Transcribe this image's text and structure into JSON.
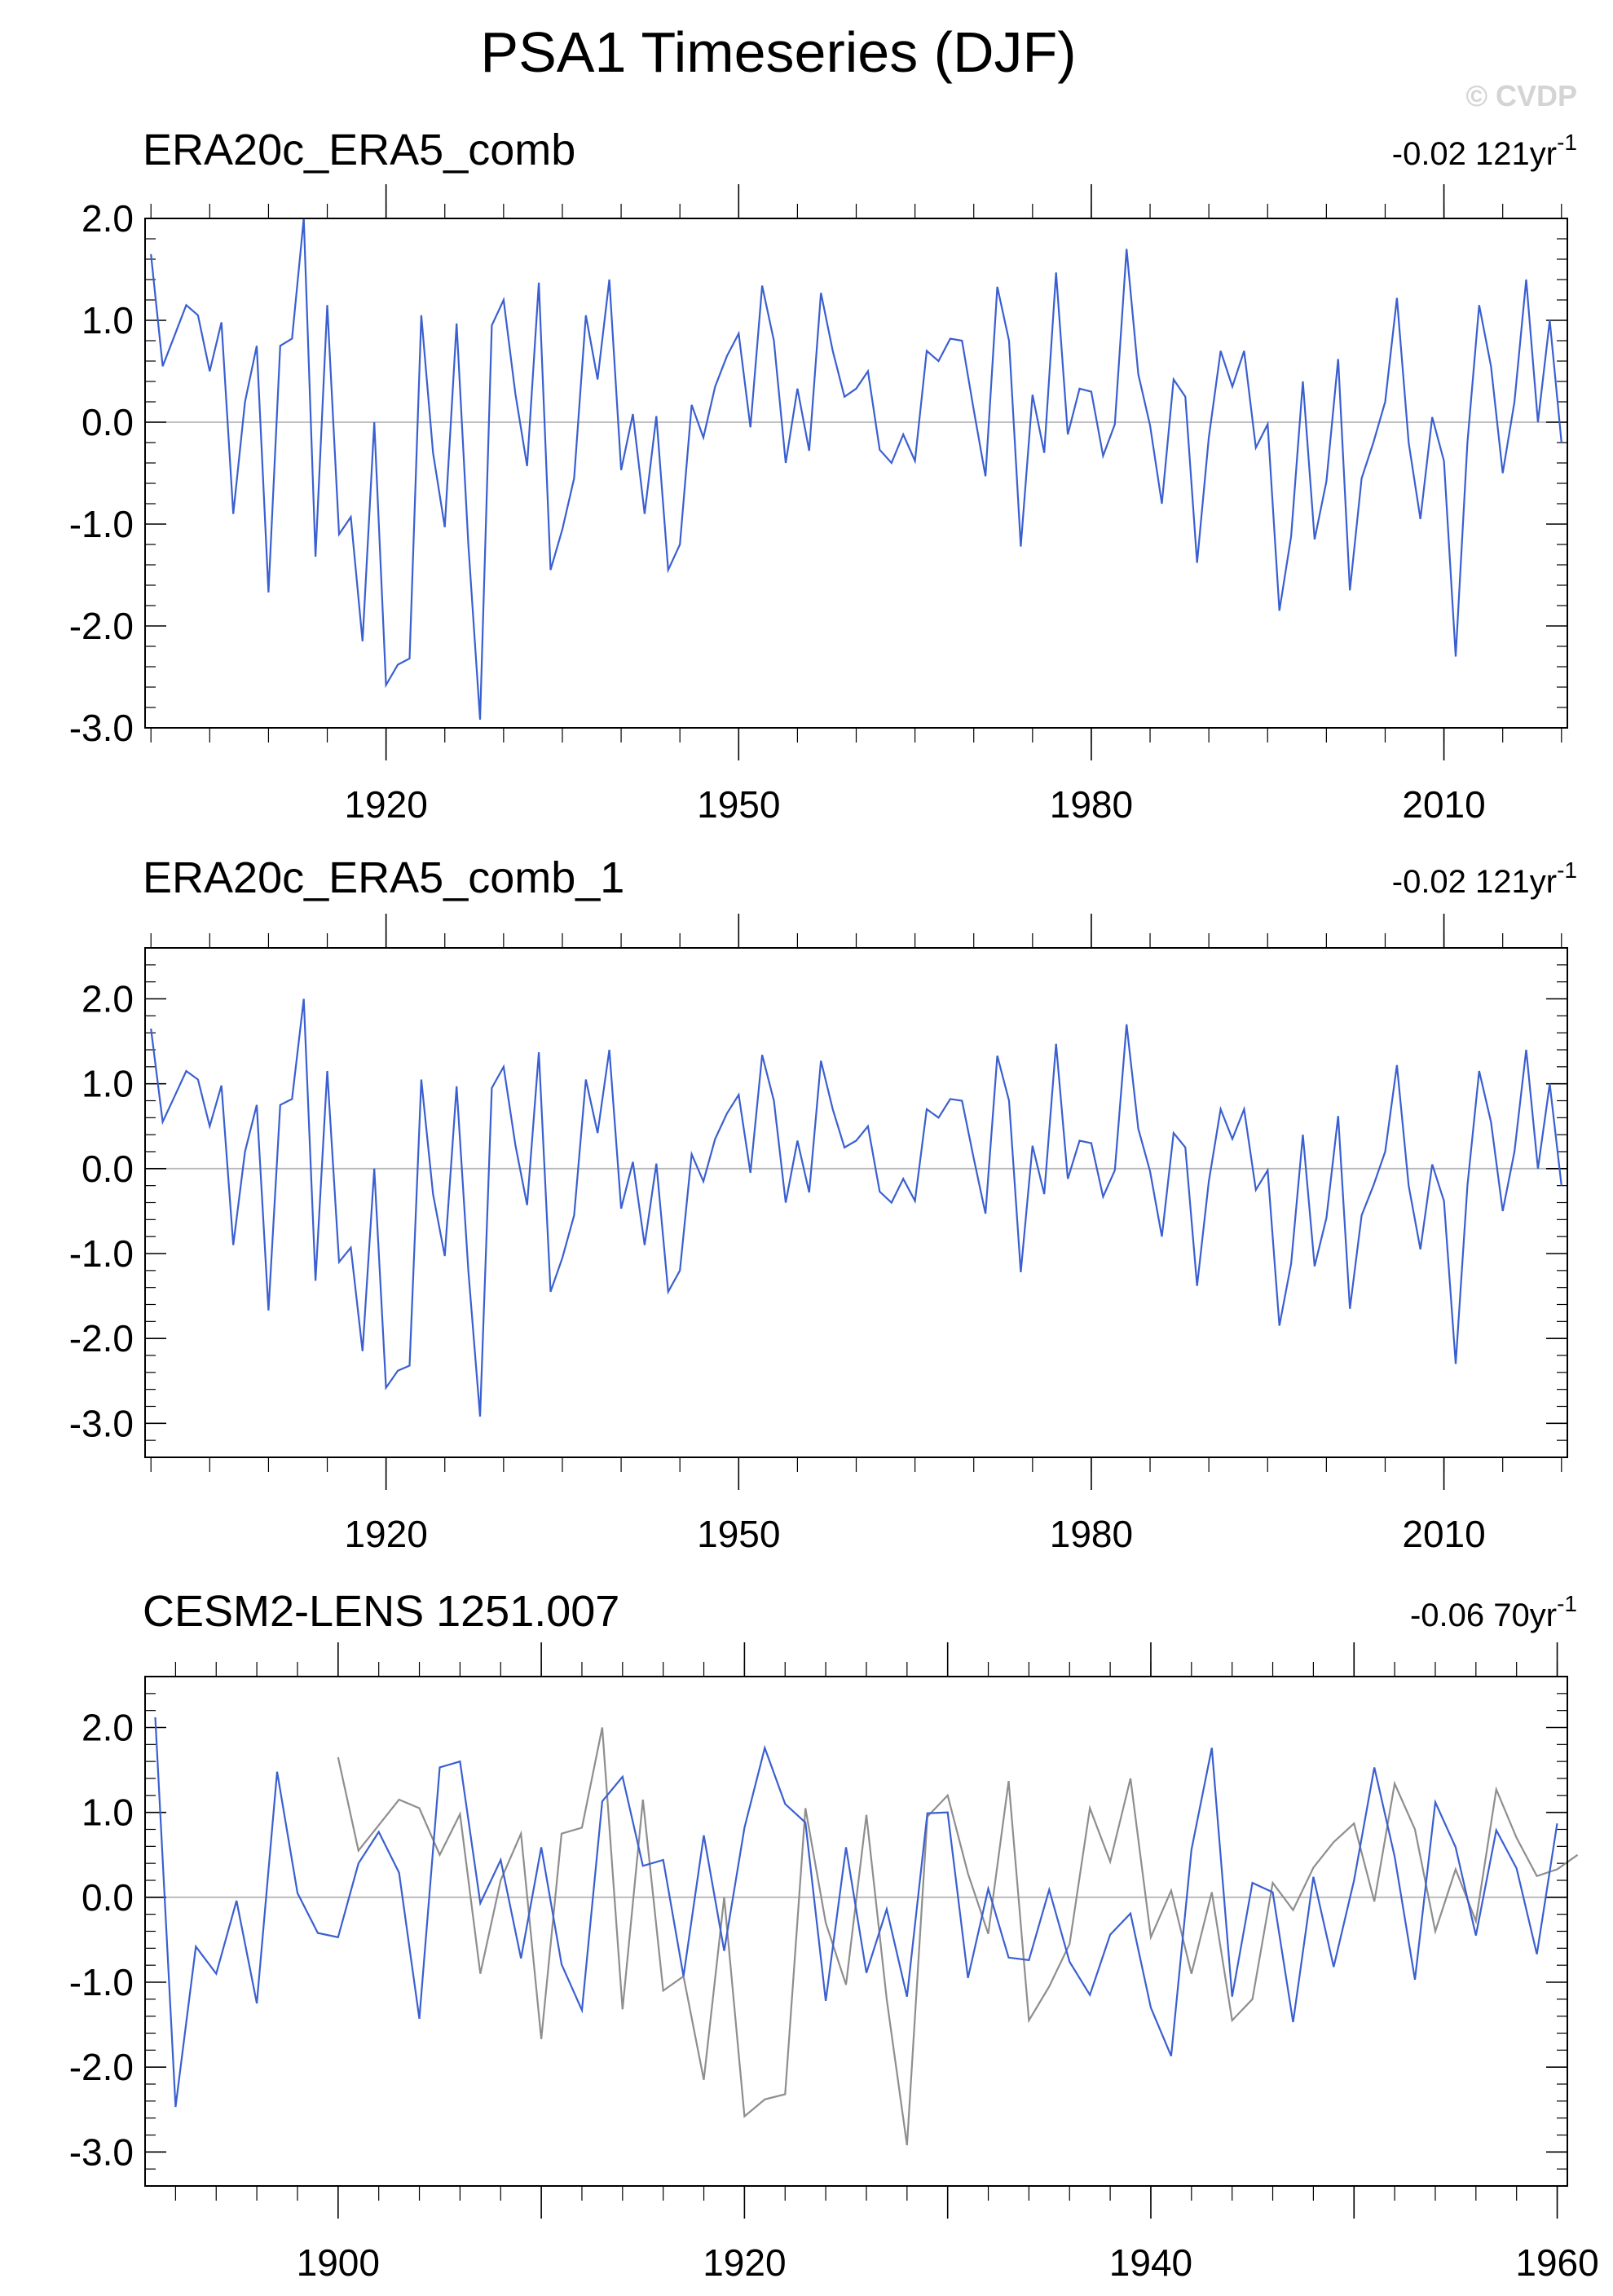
{
  "title": "PSA1 Timeseries (DJF)",
  "watermark": "© CVDP",
  "colors": {
    "primary": "#3a5fd0",
    "secondary": "#8e8e8e",
    "zero_line": "#b8b8b8",
    "frame": "#000000"
  },
  "panels": [
    {
      "title": "ERA20c_ERA5_comb",
      "trend_value": "-0.02 121yr",
      "trend_exponent": "-1"
    },
    {
      "title": "ERA20c_ERA5_comb_1",
      "trend_value": "-0.02 121yr",
      "trend_exponent": "-1"
    },
    {
      "title": "CESM2-LENS 1251.007",
      "trend_value": "-0.06 70yr",
      "trend_exponent": "-1"
    }
  ],
  "chart_data": [
    {
      "type": "line",
      "title": "ERA20c_ERA5_comb",
      "x_start": 1900,
      "x_step": 1,
      "xlim": [
        1899.5,
        2020.5
      ],
      "ylim": [
        -3.0,
        2.0
      ],
      "xticks": [
        1920,
        1950,
        1980,
        2010
      ],
      "yticks": [
        -3.0,
        -2.0,
        -1.0,
        0.0,
        1.0,
        2.0
      ],
      "ytick_labels": [
        "-3.0",
        "-2.0",
        "-1.0",
        "0.0",
        "1.0",
        "2.0"
      ],
      "series": [
        {
          "color": "#3a5fd0",
          "values": [
            1.65,
            0.55,
            0.85,
            1.15,
            1.05,
            0.5,
            0.98,
            -0.9,
            0.2,
            0.75,
            -1.67,
            0.75,
            0.82,
            2.0,
            -1.32,
            1.15,
            -1.1,
            -0.93,
            -2.15,
            0.0,
            -2.58,
            -2.38,
            -2.32,
            1.05,
            -0.3,
            -1.03,
            0.97,
            -1.2,
            -2.92,
            0.95,
            1.2,
            0.28,
            -0.43,
            1.37,
            -1.45,
            -1.05,
            -0.55,
            1.05,
            0.42,
            1.4,
            -0.47,
            0.08,
            -0.9,
            0.06,
            -1.45,
            -1.2,
            0.17,
            -0.15,
            0.35,
            0.65,
            0.87,
            -0.05,
            1.34,
            0.8,
            -0.4,
            0.33,
            -0.28,
            1.27,
            0.7,
            0.25,
            0.33,
            0.5,
            -0.27,
            -0.4,
            -0.12,
            -0.38,
            0.7,
            0.6,
            0.82,
            0.8,
            0.12,
            -0.53,
            1.33,
            0.8,
            -1.22,
            0.27,
            -0.3,
            1.47,
            -0.12,
            0.33,
            0.3,
            -0.33,
            -0.02,
            1.7,
            0.47,
            -0.03,
            -0.8,
            0.42,
            0.25,
            -1.38,
            -0.15,
            0.7,
            0.35,
            0.7,
            -0.25,
            -0.02,
            -1.85,
            -1.12,
            0.4,
            -1.15,
            -0.58,
            0.62,
            -1.65,
            -0.55,
            -0.2,
            0.2,
            1.22,
            -0.2,
            -0.95,
            0.05,
            -0.38,
            -2.3,
            -0.2,
            1.15,
            0.55,
            -0.5,
            0.2,
            1.4,
            0.0,
            1.0,
            -0.2
          ]
        }
      ]
    },
    {
      "type": "line",
      "title": "ERA20c_ERA5_comb_1",
      "x_start": 1900,
      "x_step": 1,
      "xlim": [
        1899.5,
        2020.5
      ],
      "ylim": [
        -3.4,
        2.6
      ],
      "xticks": [
        1920,
        1950,
        1980,
        2010
      ],
      "yticks": [
        -3.0,
        -2.0,
        -1.0,
        0.0,
        1.0,
        2.0
      ],
      "ytick_labels": [
        "-3.0",
        "-2.0",
        "-1.0",
        "0.0",
        "1.0",
        "2.0"
      ],
      "series": [
        {
          "color": "#3a5fd0",
          "values": [
            1.65,
            0.55,
            0.85,
            1.15,
            1.05,
            0.5,
            0.98,
            -0.9,
            0.2,
            0.75,
            -1.67,
            0.75,
            0.82,
            2.0,
            -1.32,
            1.15,
            -1.1,
            -0.93,
            -2.15,
            0.0,
            -2.58,
            -2.38,
            -2.32,
            1.05,
            -0.3,
            -1.03,
            0.97,
            -1.2,
            -2.92,
            0.95,
            1.2,
            0.28,
            -0.43,
            1.37,
            -1.45,
            -1.05,
            -0.55,
            1.05,
            0.42,
            1.4,
            -0.47,
            0.08,
            -0.9,
            0.06,
            -1.45,
            -1.2,
            0.17,
            -0.15,
            0.35,
            0.65,
            0.87,
            -0.05,
            1.34,
            0.8,
            -0.4,
            0.33,
            -0.28,
            1.27,
            0.7,
            0.25,
            0.33,
            0.5,
            -0.27,
            -0.4,
            -0.12,
            -0.38,
            0.7,
            0.6,
            0.82,
            0.8,
            0.12,
            -0.53,
            1.33,
            0.8,
            -1.22,
            0.27,
            -0.3,
            1.47,
            -0.12,
            0.33,
            0.3,
            -0.33,
            -0.02,
            1.7,
            0.47,
            -0.03,
            -0.8,
            0.42,
            0.25,
            -1.38,
            -0.15,
            0.7,
            0.35,
            0.7,
            -0.25,
            -0.02,
            -1.85,
            -1.12,
            0.4,
            -1.15,
            -0.58,
            0.62,
            -1.65,
            -0.55,
            -0.2,
            0.2,
            1.22,
            -0.2,
            -0.95,
            0.05,
            -0.38,
            -2.3,
            -0.2,
            1.15,
            0.55,
            -0.5,
            0.2,
            1.4,
            0.0,
            1.0,
            -0.2
          ]
        }
      ]
    },
    {
      "type": "line",
      "title": "CESM2-LENS 1251.007",
      "xlim": [
        1890.5,
        1960.5
      ],
      "ylim": [
        -3.4,
        2.6
      ],
      "xticks": [
        1900,
        1920,
        1940,
        1960
      ],
      "yticks": [
        -3.0,
        -2.0,
        -1.0,
        0.0,
        1.0,
        2.0
      ],
      "ytick_labels": [
        "-3.0",
        "-2.0",
        "-1.0",
        "0.0",
        "1.0",
        "2.0"
      ],
      "series": [
        {
          "color": "#3a5fd0",
          "x_start": 1891,
          "x_step": 1,
          "values": [
            2.12,
            -2.47,
            -0.58,
            -0.9,
            -0.04,
            -1.25,
            1.48,
            0.05,
            -0.42,
            -0.47,
            0.4,
            0.77,
            0.29,
            -1.43,
            1.53,
            1.6,
            -0.07,
            0.44,
            -0.72,
            0.59,
            -0.79,
            -1.33,
            1.13,
            1.42,
            0.37,
            0.44,
            -0.93,
            0.73,
            -0.63,
            0.82,
            1.76,
            1.1,
            0.88,
            -1.22,
            0.59,
            -0.89,
            -0.14,
            -1.17,
            0.99,
            1.0,
            -0.95,
            0.1,
            -0.71,
            -0.74,
            0.09,
            -0.76,
            -1.15,
            -0.44,
            -0.19,
            -1.3,
            -1.87,
            0.56,
            1.76,
            -1.17,
            0.17,
            0.06,
            -1.47,
            0.24,
            -0.82,
            0.2,
            1.53,
            0.48,
            -0.97,
            1.12,
            0.59,
            -0.45,
            0.79,
            0.34,
            -0.67,
            0.87
          ]
        },
        {
          "color": "#8e8e8e",
          "x_start": 1900,
          "x_step": 1,
          "values": [
            1.65,
            0.55,
            0.85,
            1.15,
            1.05,
            0.5,
            0.98,
            -0.9,
            0.2,
            0.75,
            -1.67,
            0.75,
            0.82,
            2.0,
            -1.32,
            1.15,
            -1.1,
            -0.93,
            -2.15,
            0.0,
            -2.58,
            -2.38,
            -2.32,
            1.05,
            -0.3,
            -1.03,
            0.97,
            -1.2,
            -2.92,
            0.95,
            1.2,
            0.28,
            -0.43,
            1.37,
            -1.45,
            -1.05,
            -0.55,
            1.05,
            0.42,
            1.4,
            -0.47,
            0.08,
            -0.9,
            0.06,
            -1.45,
            -1.2,
            0.17,
            -0.15,
            0.35,
            0.65,
            0.87,
            -0.05,
            1.34,
            0.8,
            -0.4,
            0.33,
            -0.28,
            1.27,
            0.7,
            0.25,
            0.33,
            0.5
          ]
        }
      ]
    }
  ]
}
